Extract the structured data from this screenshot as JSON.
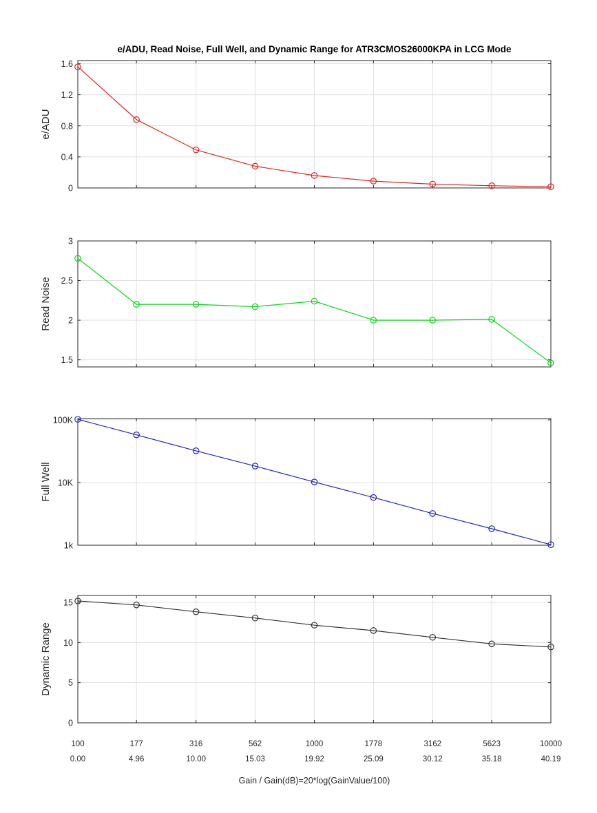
{
  "background": "#ffffff",
  "title": "e/ADU, Read Noise, Full Well, and Dynamic Range for ATR3CMOS26000KPA in LCG Mode",
  "xlabel": "Gain / Gain(dB)=20*log(GainValue/100)",
  "axis_color": "#262626",
  "grid_color": "#e0e0e0",
  "x_tick_labels": {
    "gain": [
      "100",
      "177",
      "316",
      "562",
      "1000",
      "1778",
      "3162",
      "5623",
      "10000"
    ],
    "db": [
      "0.00",
      "4.96",
      "10.00",
      "15.03",
      "19.92",
      "25.09",
      "30.12",
      "35.18",
      "40.19"
    ]
  },
  "chart_data": [
    {
      "type": "line",
      "id": "e-adu",
      "ylabel": "e/ADU",
      "color": "#e82020",
      "marker": "circle",
      "xscale": "log",
      "yscale": "linear",
      "grid": true,
      "x": [
        100,
        177,
        316,
        562,
        1000,
        1778,
        3162,
        5623,
        10000
      ],
      "values": [
        1.56,
        0.88,
        0.49,
        0.28,
        0.16,
        0.088,
        0.049,
        0.028,
        0.016
      ],
      "yticks": [
        {
          "v": 0,
          "label": "0"
        },
        {
          "v": 0.4,
          "label": "0.4"
        },
        {
          "v": 0.8,
          "label": "0.8"
        },
        {
          "v": 1.2,
          "label": "1.2"
        },
        {
          "v": 1.6,
          "label": "1.6"
        }
      ],
      "ylim": [
        0,
        1.64
      ]
    },
    {
      "type": "line",
      "id": "read-noise",
      "ylabel": "Read Noise",
      "color": "#00dd11",
      "marker": "circle",
      "xscale": "log",
      "yscale": "linear",
      "grid": true,
      "x": [
        100,
        177,
        316,
        562,
        1000,
        1778,
        3162,
        5623,
        10000
      ],
      "values": [
        2.78,
        2.2,
        2.2,
        2.17,
        2.24,
        2.0,
        2.0,
        2.01,
        1.46
      ],
      "yticks": [
        {
          "v": 1.5,
          "label": "1.5"
        },
        {
          "v": 2,
          "label": "2"
        },
        {
          "v": 2.5,
          "label": "2.5"
        },
        {
          "v": 3,
          "label": "3"
        }
      ],
      "ylim": [
        1.41,
        3
      ]
    },
    {
      "type": "line",
      "id": "full-well",
      "ylabel": "Full Well",
      "color": "#2222cc",
      "marker": "circle",
      "xscale": "log",
      "yscale": "log",
      "grid": true,
      "x": [
        100,
        177,
        316,
        562,
        1000,
        1778,
        3162,
        5623,
        10000
      ],
      "values": [
        102000,
        57700,
        32100,
        18300,
        10200,
        5770,
        3210,
        1835,
        1020
      ],
      "yticks": [
        {
          "v": 1000,
          "label": "1k"
        },
        {
          "v": 10000,
          "label": "10K"
        },
        {
          "v": 100000,
          "label": "100K"
        }
      ],
      "ylim": [
        1000,
        105000
      ]
    },
    {
      "type": "line",
      "id": "dynamic-range",
      "ylabel": "Dynamic Range",
      "color": "#333333",
      "marker": "circle",
      "xscale": "log",
      "yscale": "linear",
      "grid": true,
      "x": [
        100,
        177,
        316,
        562,
        1000,
        1778,
        3162,
        5623,
        10000
      ],
      "values": [
        15.17,
        14.68,
        13.83,
        13.05,
        12.16,
        11.49,
        10.65,
        9.83,
        9.45
      ],
      "yticks": [
        {
          "v": 0,
          "label": "0"
        },
        {
          "v": 5,
          "label": "5"
        },
        {
          "v": 10,
          "label": "10"
        },
        {
          "v": 15,
          "label": "15"
        }
      ],
      "ylim": [
        0,
        15.86
      ]
    }
  ]
}
